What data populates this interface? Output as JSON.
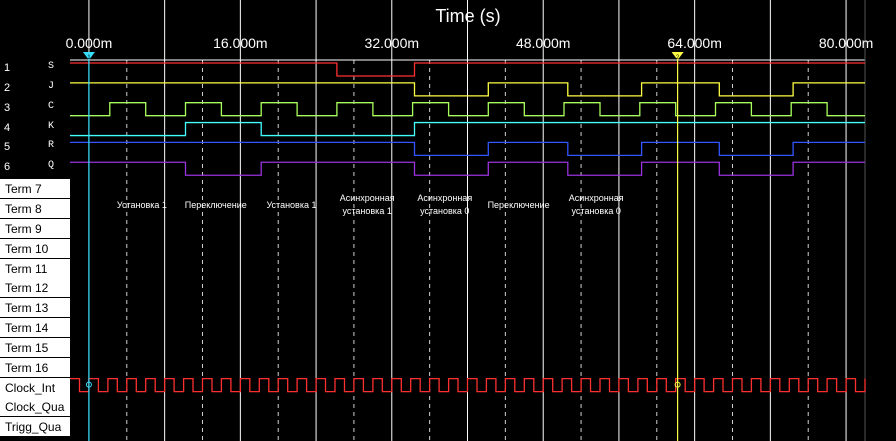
{
  "x_axis": {
    "title": "Time (s)",
    "min": -2.0,
    "max": 82.0,
    "ticks": [
      {
        "t": 0,
        "label": "0.000m"
      },
      {
        "t": 16,
        "label": "16.000m"
      },
      {
        "t": 32,
        "label": "32.000m"
      },
      {
        "t": 48,
        "label": "48.000m"
      },
      {
        "t": 64,
        "label": "64.000m"
      },
      {
        "t": 80,
        "label": "80.000m"
      }
    ],
    "major_grid": [
      0,
      8,
      16,
      24,
      32,
      40,
      48,
      56,
      64,
      72,
      80
    ],
    "minor_grid": [
      4,
      12,
      20,
      28,
      36,
      44,
      52,
      60,
      68,
      76
    ]
  },
  "cursors": [
    {
      "name": "cursor-1",
      "t": 0,
      "color": "#33e0ff",
      "marker": "1"
    },
    {
      "name": "cursor-2",
      "t": 62.2,
      "color": "#ffff44",
      "marker": "2"
    }
  ],
  "channels": [
    {
      "num": "1",
      "label": "S",
      "color": "#ff3030",
      "steps": [
        [
          -2,
          1
        ],
        [
          26.2,
          0
        ],
        [
          34.4,
          1
        ],
        [
          82,
          1
        ]
      ]
    },
    {
      "num": "2",
      "label": "J",
      "color": "#ffff44",
      "steps": [
        [
          -2,
          1
        ],
        [
          34.4,
          0
        ],
        [
          42.2,
          1
        ],
        [
          50.6,
          0
        ],
        [
          58.4,
          1
        ],
        [
          66.6,
          0
        ],
        [
          74.4,
          1
        ],
        [
          82,
          1
        ]
      ]
    },
    {
      "num": "3",
      "label": "C",
      "color": "#a8ff5c",
      "steps": [
        [
          -2,
          0
        ],
        [
          2.2,
          1
        ],
        [
          6,
          0
        ],
        [
          10.2,
          1
        ],
        [
          14,
          0
        ],
        [
          18.2,
          1
        ],
        [
          22,
          0
        ],
        [
          26.2,
          1
        ],
        [
          30,
          0
        ],
        [
          34.2,
          1
        ],
        [
          38,
          0
        ],
        [
          42.2,
          1
        ],
        [
          46,
          0
        ],
        [
          50.2,
          1
        ],
        [
          54,
          0
        ],
        [
          58.2,
          1
        ],
        [
          62,
          0
        ],
        [
          66.2,
          1
        ],
        [
          70,
          0
        ],
        [
          74.2,
          1
        ],
        [
          78,
          0
        ],
        [
          82,
          0
        ]
      ]
    },
    {
      "num": "4",
      "label": "K",
      "color": "#44ffff",
      "steps": [
        [
          -2,
          0
        ],
        [
          10.2,
          1
        ],
        [
          18.2,
          0
        ],
        [
          34.4,
          1
        ],
        [
          82,
          1
        ]
      ]
    },
    {
      "num": "5",
      "label": "R",
      "color": "#3355ff",
      "steps": [
        [
          -2,
          1
        ],
        [
          34.4,
          0
        ],
        [
          42.2,
          1
        ],
        [
          50.6,
          0
        ],
        [
          58.4,
          1
        ],
        [
          66.6,
          0
        ],
        [
          74.4,
          1
        ],
        [
          82,
          1
        ]
      ]
    },
    {
      "num": "6",
      "label": "Q",
      "color": "#9933dd",
      "steps": [
        [
          -2,
          1
        ],
        [
          10.2,
          0
        ],
        [
          18.2,
          1
        ],
        [
          34.4,
          0
        ],
        [
          42.2,
          1
        ],
        [
          50.6,
          0
        ],
        [
          58.4,
          1
        ],
        [
          66.6,
          0
        ],
        [
          74.4,
          1
        ],
        [
          82,
          1
        ]
      ]
    }
  ],
  "terms": [
    "Term 7",
    "Term 8",
    "Term 9",
    "Term 10",
    "Term 11",
    "Term 12",
    "Term 13",
    "Term 14",
    "Term 15",
    "Term 16",
    "Clock_Int",
    "Clock_Qua",
    "Trigg_Qua"
  ],
  "clock": {
    "color": "#ff3030",
    "start": -2,
    "end": 82,
    "half_period": 1
  },
  "annotations": [
    {
      "t": 5.6,
      "lines": [
        "Установка 1"
      ]
    },
    {
      "t": 13.4,
      "lines": [
        "Переключение"
      ]
    },
    {
      "t": 21.4,
      "lines": [
        "Установка 1"
      ]
    },
    {
      "t": 29.4,
      "lines": [
        "Асинхронная",
        "установка 1"
      ]
    },
    {
      "t": 37.6,
      "lines": [
        "Асинхронная",
        "установка 0"
      ]
    },
    {
      "t": 45.4,
      "lines": [
        "Переключение"
      ]
    },
    {
      "t": 53.6,
      "lines": [
        "Асинхронная",
        "установка 0"
      ]
    }
  ]
}
